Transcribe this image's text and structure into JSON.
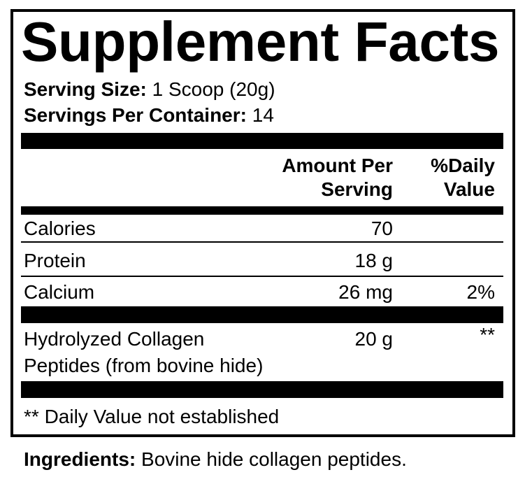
{
  "title": "Supplement Facts",
  "serving_size": {
    "label": "Serving Size:",
    "value": "1 Scoop (20g)"
  },
  "servings_per_container": {
    "label": "Servings Per Container:",
    "value": "14"
  },
  "columns": {
    "amount": [
      "Amount Per",
      "Serving"
    ],
    "daily_value": [
      "%Daily",
      "Value"
    ]
  },
  "rows": [
    {
      "name": "Calories",
      "amount": "70",
      "dv": ""
    },
    {
      "name": "Protein",
      "amount": "18 g",
      "dv": ""
    },
    {
      "name": "Calcium",
      "amount": "26 mg",
      "dv": "2%"
    },
    {
      "name": "Hydrolyzed Collagen",
      "name_line2": "Peptides (from bovine hide)",
      "amount": "20 g",
      "dv": "**"
    }
  ],
  "footnote": "** Daily Value not established",
  "ingredients": {
    "label": "Ingredients:",
    "value": "Bovine hide collagen peptides."
  }
}
